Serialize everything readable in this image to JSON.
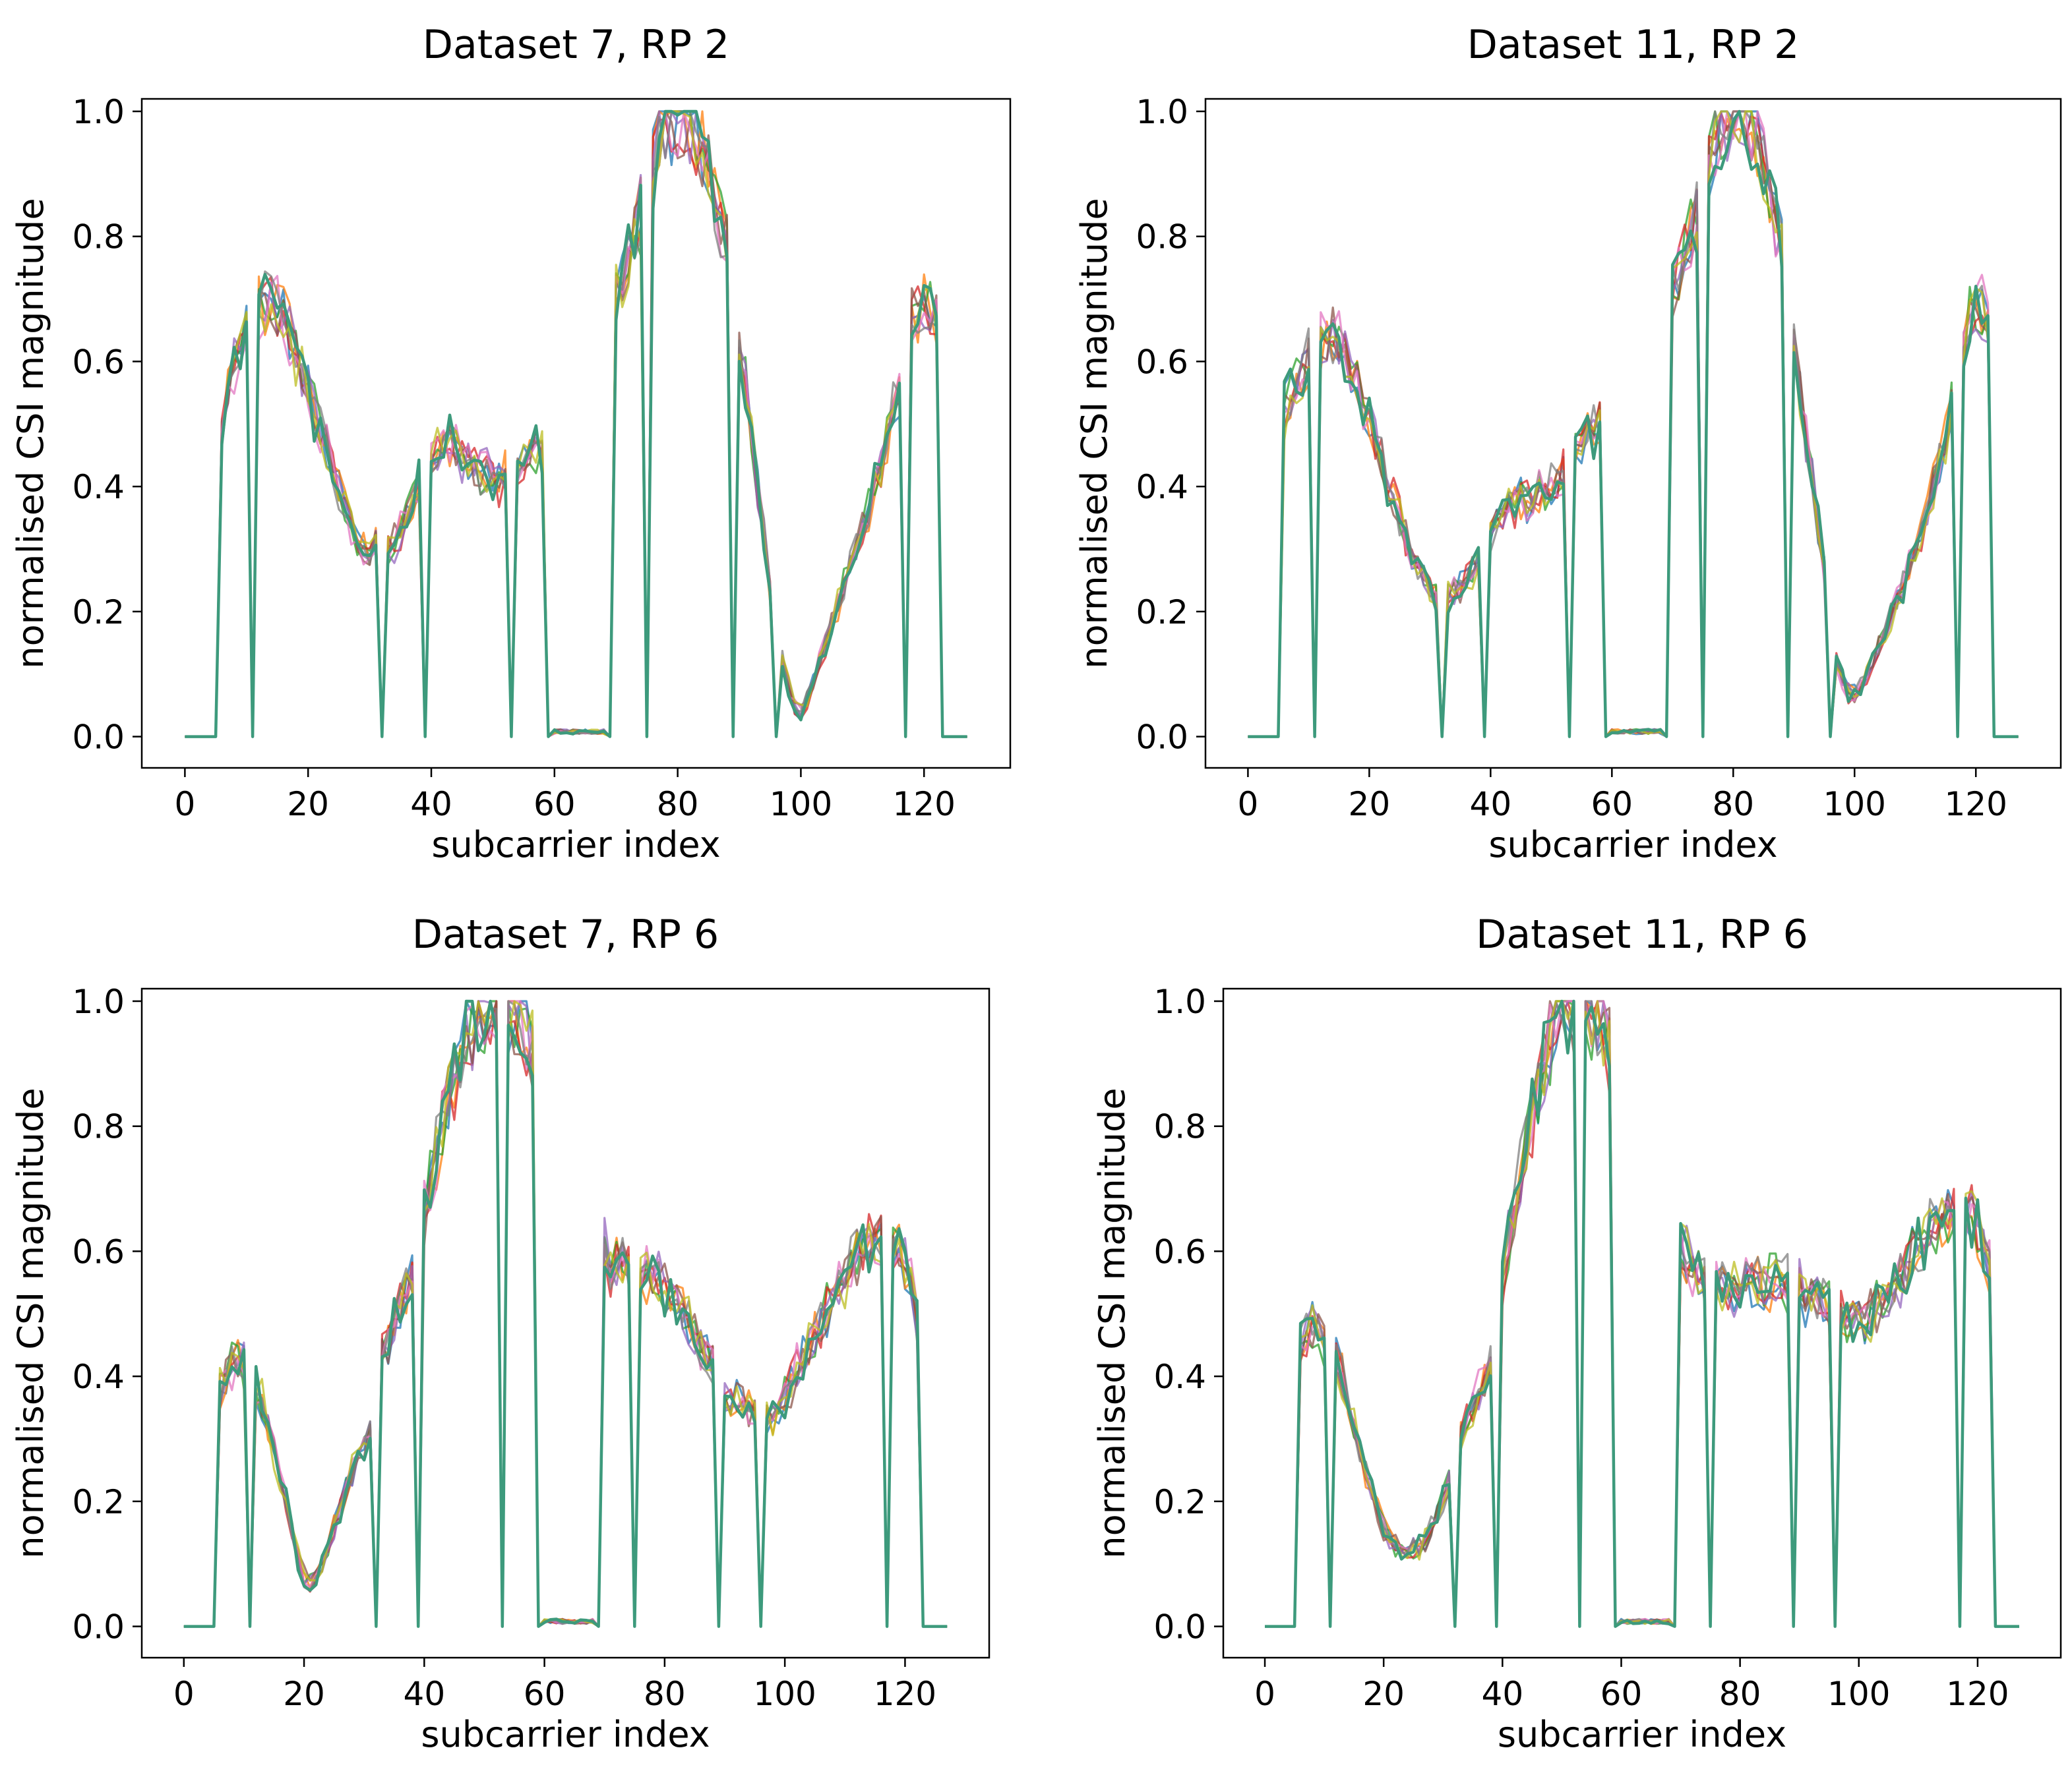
{
  "chart_data": [
    {
      "type": "line",
      "title": "Dataset 7, RP 2",
      "xlabel": "subcarrier index",
      "ylabel": "normalised CSI magnitude",
      "xlim": [
        -7,
        134
      ],
      "ylim": [
        -0.05,
        1.02
      ],
      "xticks": [
        0,
        20,
        40,
        60,
        80,
        100,
        120
      ],
      "yticks": [
        0.0,
        0.2,
        0.4,
        0.6,
        0.8,
        1.0
      ],
      "xtick_labels": [
        "0",
        "20",
        "40",
        "60",
        "80",
        "100",
        "120"
      ],
      "ytick_labels": [
        "0.0",
        "0.2",
        "0.4",
        "0.6",
        "0.8",
        "1.0"
      ],
      "grid": false,
      "series_count": 10,
      "nulls": [
        0,
        1,
        2,
        3,
        4,
        5,
        11,
        32,
        39,
        53,
        59,
        60,
        61,
        62,
        63,
        64,
        65,
        66,
        67,
        68,
        69,
        75,
        89,
        96,
        117,
        123,
        124,
        125,
        126,
        127
      ],
      "x_step": 1,
      "segments": [
        {
          "x0": 6,
          "x1": 10,
          "y": [
            0.47,
            0.55,
            0.6,
            0.63,
            0.66
          ]
        },
        {
          "x0": 12,
          "x1": 31,
          "y": [
            0.68,
            0.69,
            0.7,
            0.69,
            0.67,
            0.64,
            0.61,
            0.58,
            0.55,
            0.52,
            0.49,
            0.46,
            0.43,
            0.4,
            0.37,
            0.34,
            0.32,
            0.3,
            0.29,
            0.31
          ]
        },
        {
          "x0": 33,
          "x1": 38,
          "y": [
            0.29,
            0.31,
            0.33,
            0.36,
            0.38,
            0.41
          ]
        },
        {
          "x0": 40,
          "x1": 52,
          "y": [
            0.44,
            0.46,
            0.47,
            0.47,
            0.46,
            0.45,
            0.44,
            0.43,
            0.42,
            0.42,
            0.41,
            0.41,
            0.42
          ]
        },
        {
          "x0": 54,
          "x1": 58,
          "y": [
            0.43,
            0.44,
            0.45,
            0.46,
            0.46
          ]
        },
        {
          "x0": 70,
          "x1": 74,
          "y": [
            0.7,
            0.74,
            0.77,
            0.8,
            0.83
          ]
        },
        {
          "x0": 76,
          "x1": 88,
          "y": [
            0.92,
            0.96,
            0.98,
            0.99,
            1.0,
            1.0,
            0.99,
            0.97,
            0.94,
            0.9,
            0.86,
            0.82,
            0.78
          ]
        },
        {
          "x0": 90,
          "x1": 95,
          "y": [
            0.63,
            0.56,
            0.48,
            0.4,
            0.32,
            0.24
          ]
        },
        {
          "x0": 97,
          "x1": 116,
          "y": [
            0.12,
            0.08,
            0.05,
            0.04,
            0.06,
            0.09,
            0.12,
            0.15,
            0.18,
            0.21,
            0.24,
            0.27,
            0.3,
            0.33,
            0.36,
            0.4,
            0.44,
            0.48,
            0.52,
            0.56
          ]
        },
        {
          "x0": 118,
          "x1": 122,
          "y": [
            0.67,
            0.68,
            0.69,
            0.68,
            0.66
          ]
        }
      ]
    },
    {
      "type": "line",
      "title": "Dataset 11, RP 2",
      "xlabel": "subcarrier index",
      "ylabel": "normalised CSI magnitude",
      "xlim": [
        -7,
        134
      ],
      "ylim": [
        -0.05,
        1.02
      ],
      "xticks": [
        0,
        20,
        40,
        60,
        80,
        100,
        120
      ],
      "yticks": [
        0.0,
        0.2,
        0.4,
        0.6,
        0.8,
        1.0
      ],
      "xtick_labels": [
        "0",
        "20",
        "40",
        "60",
        "80",
        "100",
        "120"
      ],
      "ytick_labels": [
        "0.0",
        "0.2",
        "0.4",
        "0.6",
        "0.8",
        "1.0"
      ],
      "grid": false,
      "series_count": 10,
      "nulls": [
        0,
        1,
        2,
        3,
        4,
        5,
        11,
        32,
        39,
        53,
        59,
        60,
        61,
        62,
        63,
        64,
        65,
        66,
        67,
        68,
        69,
        75,
        89,
        96,
        117,
        123,
        124,
        125,
        126,
        127
      ],
      "x_step": 1,
      "segments": [
        {
          "x0": 6,
          "x1": 10,
          "y": [
            0.52,
            0.55,
            0.57,
            0.58,
            0.6
          ]
        },
        {
          "x0": 12,
          "x1": 31,
          "y": [
            0.63,
            0.64,
            0.64,
            0.63,
            0.61,
            0.59,
            0.56,
            0.53,
            0.5,
            0.47,
            0.44,
            0.41,
            0.38,
            0.35,
            0.32,
            0.29,
            0.27,
            0.25,
            0.23,
            0.22
          ]
        },
        {
          "x0": 33,
          "x1": 38,
          "y": [
            0.22,
            0.23,
            0.24,
            0.25,
            0.26,
            0.28
          ]
        },
        {
          "x0": 40,
          "x1": 52,
          "y": [
            0.33,
            0.35,
            0.36,
            0.37,
            0.37,
            0.38,
            0.38,
            0.38,
            0.39,
            0.39,
            0.4,
            0.41,
            0.42
          ]
        },
        {
          "x0": 54,
          "x1": 58,
          "y": [
            0.46,
            0.47,
            0.48,
            0.49,
            0.5
          ]
        },
        {
          "x0": 70,
          "x1": 74,
          "y": [
            0.71,
            0.74,
            0.77,
            0.8,
            0.83
          ]
        },
        {
          "x0": 76,
          "x1": 88,
          "y": [
            0.92,
            0.95,
            0.97,
            0.99,
            1.0,
            1.0,
            0.99,
            0.97,
            0.95,
            0.91,
            0.87,
            0.83,
            0.79
          ]
        },
        {
          "x0": 90,
          "x1": 95,
          "y": [
            0.62,
            0.55,
            0.48,
            0.41,
            0.34,
            0.27
          ]
        },
        {
          "x0": 97,
          "x1": 116,
          "y": [
            0.12,
            0.09,
            0.07,
            0.07,
            0.08,
            0.1,
            0.12,
            0.14,
            0.16,
            0.19,
            0.22,
            0.24,
            0.27,
            0.3,
            0.33,
            0.36,
            0.4,
            0.44,
            0.48,
            0.53
          ]
        },
        {
          "x0": 118,
          "x1": 122,
          "y": [
            0.63,
            0.67,
            0.69,
            0.68,
            0.65
          ]
        }
      ]
    },
    {
      "type": "line",
      "title": "Dataset 7, RP 6",
      "xlabel": "subcarrier index",
      "ylabel": "normalised CSI magnitude",
      "xlim": [
        -7,
        134
      ],
      "ylim": [
        -0.05,
        1.02
      ],
      "xticks": [
        0,
        20,
        40,
        60,
        80,
        100,
        120
      ],
      "yticks": [
        0.0,
        0.2,
        0.4,
        0.6,
        0.8,
        1.0
      ],
      "xtick_labels": [
        "0",
        "20",
        "40",
        "60",
        "80",
        "100",
        "120"
      ],
      "ytick_labels": [
        "0.0",
        "0.2",
        "0.4",
        "0.6",
        "0.8",
        "1.0"
      ],
      "grid": false,
      "series_count": 10,
      "nulls": [
        0,
        1,
        2,
        3,
        4,
        5,
        11,
        32,
        39,
        53,
        59,
        60,
        61,
        62,
        63,
        64,
        65,
        66,
        67,
        68,
        69,
        75,
        89,
        96,
        117,
        123,
        124,
        125,
        126,
        127
      ],
      "x_step": 1,
      "segments": [
        {
          "x0": 6,
          "x1": 10,
          "y": [
            0.38,
            0.4,
            0.42,
            0.43,
            0.42
          ]
        },
        {
          "x0": 12,
          "x1": 31,
          "y": [
            0.39,
            0.36,
            0.32,
            0.28,
            0.24,
            0.2,
            0.15,
            0.11,
            0.08,
            0.07,
            0.08,
            0.1,
            0.13,
            0.16,
            0.19,
            0.22,
            0.25,
            0.27,
            0.29,
            0.32
          ]
        },
        {
          "x0": 33,
          "x1": 38,
          "y": [
            0.43,
            0.46,
            0.49,
            0.51,
            0.53,
            0.56
          ]
        },
        {
          "x0": 40,
          "x1": 52,
          "y": [
            0.66,
            0.71,
            0.76,
            0.8,
            0.84,
            0.87,
            0.9,
            0.93,
            0.95,
            0.97,
            0.98,
            0.99,
            0.99
          ]
        },
        {
          "x0": 54,
          "x1": 58,
          "y": [
            0.98,
            0.97,
            0.96,
            0.95,
            0.91
          ]
        },
        {
          "x0": 70,
          "x1": 74,
          "y": [
            0.6,
            0.58,
            0.59,
            0.58,
            0.57
          ]
        },
        {
          "x0": 76,
          "x1": 88,
          "y": [
            0.57,
            0.56,
            0.56,
            0.55,
            0.54,
            0.53,
            0.52,
            0.5,
            0.49,
            0.47,
            0.45,
            0.43,
            0.42
          ]
        },
        {
          "x0": 90,
          "x1": 95,
          "y": [
            0.37,
            0.36,
            0.36,
            0.35,
            0.35,
            0.34
          ]
        },
        {
          "x0": 97,
          "x1": 116,
          "y": [
            0.33,
            0.34,
            0.35,
            0.37,
            0.39,
            0.41,
            0.43,
            0.45,
            0.47,
            0.49,
            0.51,
            0.53,
            0.55,
            0.56,
            0.58,
            0.59,
            0.6,
            0.61,
            0.61,
            0.62
          ]
        },
        {
          "x0": 118,
          "x1": 122,
          "y": [
            0.61,
            0.6,
            0.58,
            0.55,
            0.49
          ]
        }
      ]
    },
    {
      "type": "line",
      "title": "Dataset 11, RP 6",
      "xlabel": "subcarrier index",
      "ylabel": "normalised CSI magnitude",
      "xlim": [
        -7,
        134
      ],
      "ylim": [
        -0.05,
        1.02
      ],
      "xticks": [
        0,
        20,
        40,
        60,
        80,
        100,
        120
      ],
      "yticks": [
        0.0,
        0.2,
        0.4,
        0.6,
        0.8,
        1.0
      ],
      "xtick_labels": [
        "0",
        "20",
        "40",
        "60",
        "80",
        "100",
        "120"
      ],
      "ytick_labels": [
        "0.0",
        "0.2",
        "0.4",
        "0.6",
        "0.8",
        "1.0"
      ],
      "grid": false,
      "series_count": 10,
      "nulls": [
        0,
        1,
        2,
        3,
        4,
        5,
        11,
        32,
        39,
        53,
        59,
        60,
        61,
        62,
        63,
        64,
        65,
        66,
        67,
        68,
        69,
        75,
        89,
        96,
        117,
        123,
        124,
        125,
        126,
        127
      ],
      "x_step": 1,
      "segments": [
        {
          "x0": 6,
          "x1": 10,
          "y": [
            0.45,
            0.47,
            0.48,
            0.47,
            0.45
          ]
        },
        {
          "x0": 12,
          "x1": 31,
          "y": [
            0.43,
            0.4,
            0.36,
            0.32,
            0.28,
            0.25,
            0.22,
            0.19,
            0.16,
            0.14,
            0.13,
            0.12,
            0.12,
            0.12,
            0.13,
            0.14,
            0.16,
            0.18,
            0.2,
            0.23
          ]
        },
        {
          "x0": 33,
          "x1": 38,
          "y": [
            0.3,
            0.33,
            0.35,
            0.37,
            0.39,
            0.42
          ]
        },
        {
          "x0": 40,
          "x1": 52,
          "y": [
            0.56,
            0.62,
            0.67,
            0.72,
            0.77,
            0.82,
            0.86,
            0.9,
            0.93,
            0.96,
            0.98,
            0.99,
            0.99
          ]
        },
        {
          "x0": 54,
          "x1": 58,
          "y": [
            0.99,
            0.98,
            0.97,
            0.96,
            0.93
          ]
        },
        {
          "x0": 70,
          "x1": 74,
          "y": [
            0.6,
            0.59,
            0.58,
            0.56,
            0.55
          ]
        },
        {
          "x0": 76,
          "x1": 88,
          "y": [
            0.55,
            0.54,
            0.54,
            0.54,
            0.55,
            0.55,
            0.55,
            0.55,
            0.55,
            0.55,
            0.55,
            0.55,
            0.55
          ]
        },
        {
          "x0": 90,
          "x1": 95,
          "y": [
            0.54,
            0.53,
            0.53,
            0.52,
            0.52,
            0.51
          ]
        },
        {
          "x0": 97,
          "x1": 116,
          "y": [
            0.5,
            0.49,
            0.49,
            0.49,
            0.49,
            0.5,
            0.51,
            0.52,
            0.53,
            0.54,
            0.56,
            0.57,
            0.59,
            0.61,
            0.62,
            0.63,
            0.64,
            0.65,
            0.66,
            0.67
          ]
        },
        {
          "x0": 118,
          "x1": 122,
          "y": [
            0.67,
            0.66,
            0.64,
            0.61,
            0.57
          ]
        }
      ]
    }
  ],
  "colors": {
    "series": [
      "#1f77b4",
      "#ff7f0e",
      "#2ca02c",
      "#d62728",
      "#9467bd",
      "#8c564b",
      "#e377c2",
      "#7f7f7f",
      "#bcbd22",
      "#17becf"
    ],
    "axes": "#000000",
    "background": "#ffffff",
    "last_series": "#3d9a7c"
  }
}
